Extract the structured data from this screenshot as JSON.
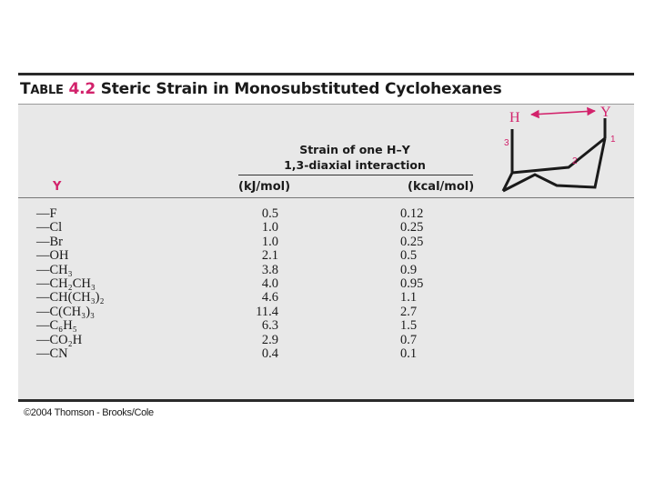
{
  "table": {
    "label_prefix": "T",
    "label_rest": "ABLE",
    "number": "4.2",
    "title": "Steric Strain in Monosubstituted Cyclohexanes"
  },
  "header": {
    "strain_line1": "Strain of one H–Y",
    "strain_line2": "1,3-diaxial interaction",
    "col_y": "Y",
    "col_kj": "(kJ/mol)",
    "col_kcal": "(kcal/mol)"
  },
  "diagram": {
    "h_label": "H",
    "y_label": "Y",
    "c1": "1",
    "c2": "2",
    "c3": "3",
    "accent_color": "#d2226b"
  },
  "rows": [
    {
      "y": "—F",
      "kj": "0.5",
      "kcal": "0.12"
    },
    {
      "y": "—Cl",
      "kj": "1.0",
      "kcal": "0.25"
    },
    {
      "y": "—Br",
      "kj": "1.0",
      "kcal": "0.25"
    },
    {
      "y": "—OH",
      "kj": "2.1",
      "kcal": "0.5"
    },
    {
      "y": "—CH₃",
      "kj": "3.8",
      "kcal": "0.9"
    },
    {
      "y": "—CH₂CH₃",
      "kj": "4.0",
      "kcal": "0.95"
    },
    {
      "y": "—CH(CH₃)₂",
      "kj": "4.6",
      "kcal": "1.1"
    },
    {
      "y": "—C(CH₃)₃",
      "kj": "11.4",
      "kcal": "2.7"
    },
    {
      "y": "—C₆H₅",
      "kj": "6.3",
      "kcal": "1.5"
    },
    {
      "y": "—CO₂H",
      "kj": "2.9",
      "kcal": "0.7"
    },
    {
      "y": "—CN",
      "kj": "0.4",
      "kcal": "0.1"
    }
  ],
  "copyright": "©2004 Thomson - Brooks/Cole"
}
